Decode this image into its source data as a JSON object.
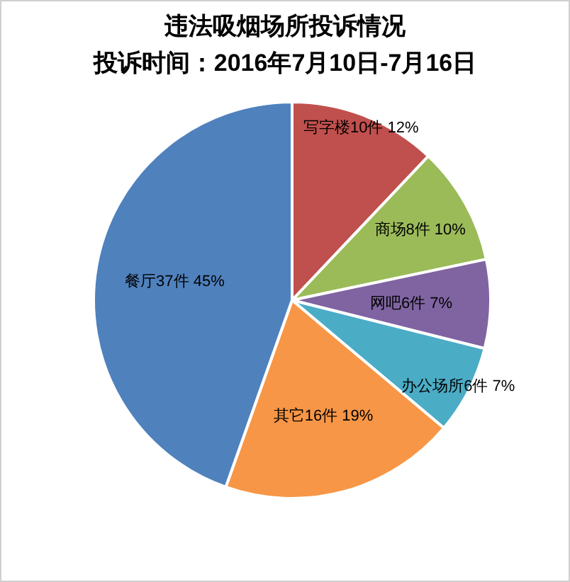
{
  "chart_data": {
    "type": "pie",
    "title": "违法吸烟场所投诉情况",
    "subtitle": "投诉时间：2016年7月10日-7月16日",
    "categories": [
      "写字楼",
      "商场",
      "网吧",
      "办公场所",
      "其它",
      "餐厅"
    ],
    "values": [
      10,
      8,
      6,
      6,
      16,
      37
    ],
    "value_labels": [
      "10件 12%",
      "8件 10%",
      "6件 7%",
      "6件 7%",
      "16件 19%",
      "37件 45%"
    ],
    "colors": [
      "#c0504d",
      "#9bbb59",
      "#8064a2",
      "#4bacc6",
      "#f79646",
      "#4f81bd"
    ]
  }
}
